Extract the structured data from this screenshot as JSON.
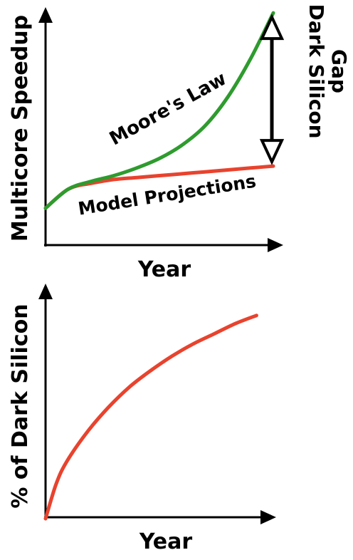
{
  "chart_data": [
    {
      "type": "line",
      "title": "",
      "xlabel": "Year",
      "ylabel": "Multicore Speedup",
      "series": [
        {
          "name": "Moore's Law",
          "color": "#2e9b2e",
          "x": [
            0,
            0.1,
            0.2,
            0.3,
            0.4,
            0.5,
            0.6,
            0.7,
            0.8,
            0.9,
            1.0
          ],
          "y": [
            0.2,
            0.3,
            0.34,
            0.37,
            0.41,
            0.46,
            0.53,
            0.63,
            0.78,
            0.98,
            1.22
          ]
        },
        {
          "name": "Model Projections",
          "color": "#e8432e",
          "x": [
            0,
            0.1,
            0.2,
            0.3,
            0.4,
            0.5,
            0.6,
            0.7,
            0.8,
            0.9,
            1.0
          ],
          "y": [
            0.2,
            0.3,
            0.33,
            0.35,
            0.36,
            0.37,
            0.38,
            0.39,
            0.4,
            0.41,
            0.42
          ]
        }
      ],
      "annotations": [
        {
          "text": "Dark Silicon",
          "line2": "Gap",
          "x": 1.0,
          "y_from": 0.42,
          "y_to": 1.22
        }
      ],
      "xlim": [
        0,
        1.05
      ],
      "ylim": [
        0,
        1.25
      ],
      "grid": false,
      "legend": "none"
    },
    {
      "type": "line",
      "title": "",
      "xlabel": "Year",
      "ylabel": "% of Dark Silicon",
      "series": [
        {
          "color": "#e8432e",
          "x": [
            0,
            0.05,
            0.1,
            0.2,
            0.3,
            0.4,
            0.5,
            0.6,
            0.7,
            0.8,
            0.9,
            1.0
          ],
          "y": [
            0,
            0.17,
            0.28,
            0.43,
            0.55,
            0.65,
            0.73,
            0.8,
            0.86,
            0.91,
            0.96,
            1.0
          ]
        }
      ],
      "xlim": [
        0,
        1.1
      ],
      "ylim": [
        0,
        1.15
      ],
      "grid": false,
      "legend": "none"
    }
  ]
}
